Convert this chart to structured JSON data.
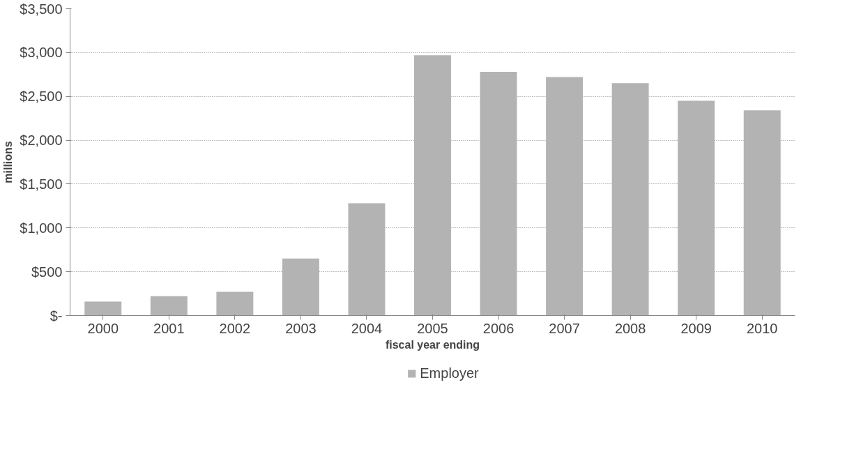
{
  "chart_data": {
    "type": "bar",
    "xlabel": "fiscal year ending",
    "ylabel": "millions",
    "categories": [
      "2000",
      "2001",
      "2002",
      "2003",
      "2004",
      "2005",
      "2006",
      "2007",
      "2008",
      "2009",
      "2010"
    ],
    "series": [
      {
        "name": "Employer",
        "color": "#b3b3b3",
        "values": [
          160,
          220,
          270,
          650,
          1280,
          2970,
          2780,
          2720,
          2650,
          2450,
          2340
        ]
      }
    ],
    "ylim": [
      0,
      3500
    ],
    "yticks": [
      {
        "value": 0,
        "label": "$-"
      },
      {
        "value": 500,
        "label": "$500"
      },
      {
        "value": 1000,
        "label": "$1,000"
      },
      {
        "value": 1500,
        "label": "$1,500"
      },
      {
        "value": 2000,
        "label": "$2,000"
      },
      {
        "value": 2500,
        "label": "$2,500"
      },
      {
        "value": 3000,
        "label": "$3,000"
      },
      {
        "value": 3500,
        "label": "$3,500"
      }
    ],
    "grid": "y",
    "legend": "bottom"
  }
}
